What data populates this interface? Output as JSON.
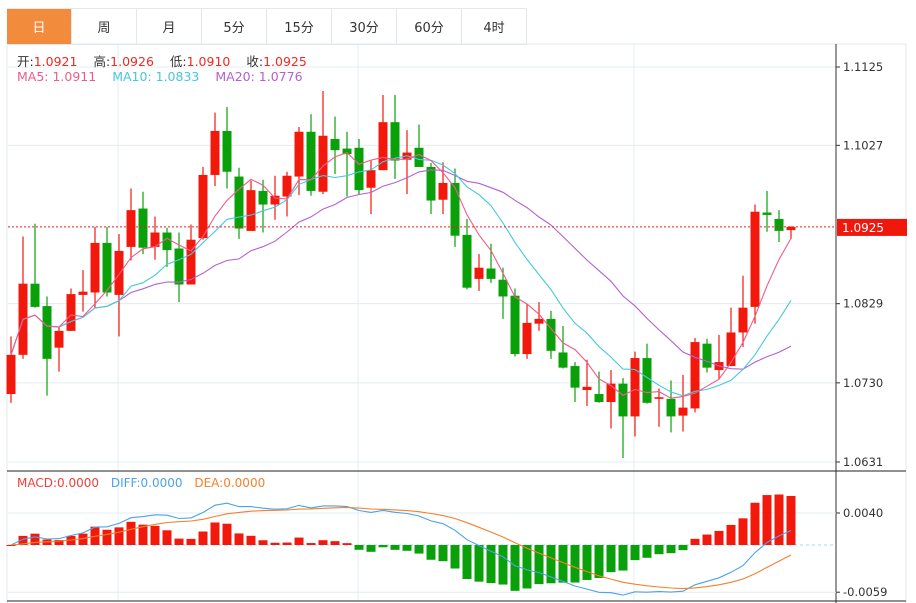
{
  "tabs": [
    {
      "label": "日",
      "active": true
    },
    {
      "label": "周",
      "active": false
    },
    {
      "label": "月",
      "active": false
    },
    {
      "label": "5分",
      "active": false
    },
    {
      "label": "15分",
      "active": false
    },
    {
      "label": "30分",
      "active": false
    },
    {
      "label": "60分",
      "active": false
    },
    {
      "label": "4时",
      "active": false
    }
  ],
  "ohlc_info": {
    "open_label": "开:",
    "open": "1.0921",
    "high_label": "高:",
    "high": "1.0926",
    "low_label": "低:",
    "low": "1.0910",
    "close_label": "收:",
    "close": "1.0925"
  },
  "ma_info": {
    "ma5": "MA5: 1.0911",
    "ma10": "MA10: 1.0833",
    "ma20": "MA20: 1.0776"
  },
  "macd_info": {
    "macd": "MACD:0.0000",
    "diff": "DIFF:0.0000",
    "dea": "DEA:0.0000"
  },
  "colors": {
    "up": "#f2180c",
    "down": "#0aa00a",
    "ma5": "#ef5c8a",
    "ma10": "#46c8dc",
    "ma20": "#b560d2",
    "diff": "#4aa3ea",
    "dea": "#f4812c",
    "accent": "#f28b3c"
  },
  "chart_data": {
    "type": "candlestick",
    "price_axis_ticks": [
      "1.1125",
      "1.1027",
      "1.0829",
      "1.0730",
      "1.0631"
    ],
    "price_axis_range": [
      1.0631,
      1.1125
    ],
    "current_price": "1.0925",
    "macd_axis_ticks": [
      "0.0040",
      "-0.0059"
    ],
    "candles_ohlc": [
      [
        1.0716,
        1.0788,
        1.0705,
        1.0765
      ],
      [
        1.0765,
        1.0913,
        1.076,
        1.0854
      ],
      [
        1.0854,
        1.0929,
        1.0824,
        1.0825
      ],
      [
        1.0826,
        1.0838,
        1.0714,
        1.076
      ],
      [
        1.0774,
        1.08,
        1.0744,
        1.0795
      ],
      [
        1.0795,
        1.0848,
        1.0795,
        1.0841
      ],
      [
        1.084,
        1.0871,
        1.0819,
        1.0844
      ],
      [
        1.0843,
        1.0925,
        1.0823,
        1.0905
      ],
      [
        1.0905,
        1.0925,
        1.0838,
        1.0843
      ],
      [
        1.084,
        1.0916,
        1.0788,
        1.0895
      ],
      [
        1.09,
        1.0973,
        1.0883,
        1.0946
      ],
      [
        1.0948,
        1.0969,
        1.0891,
        1.0899
      ],
      [
        1.09,
        1.0938,
        1.0884,
        1.0918
      ],
      [
        1.0918,
        1.0924,
        1.0875,
        1.0896
      ],
      [
        1.0898,
        1.0918,
        1.0831,
        1.0853
      ],
      [
        1.0853,
        1.0928,
        1.0853,
        1.0909
      ],
      [
        1.0911,
        1.1,
        1.0909,
        1.099
      ],
      [
        1.099,
        1.1068,
        1.0976,
        1.1045
      ],
      [
        1.1045,
        1.1075,
        1.0973,
        1.0994
      ],
      [
        1.0988,
        1.0999,
        1.091,
        1.0923
      ],
      [
        1.092,
        1.0983,
        1.092,
        1.0971
      ],
      [
        1.097,
        1.0984,
        1.0918,
        1.0953
      ],
      [
        1.0953,
        1.0989,
        1.0934,
        1.0964
      ],
      [
        1.0963,
        1.0994,
        1.0938,
        1.0989
      ],
      [
        1.0988,
        1.105,
        1.0965,
        1.1044
      ],
      [
        1.1044,
        1.1066,
        1.0964,
        1.097
      ],
      [
        1.0969,
        1.1095,
        1.0966,
        1.1039
      ],
      [
        1.1035,
        1.1063,
        1.0991,
        1.1021
      ],
      [
        1.1023,
        1.1044,
        1.0963,
        1.1016
      ],
      [
        1.1024,
        1.1035,
        1.0965,
        1.0971
      ],
      [
        1.0974,
        1.1008,
        1.0941,
        1.0996
      ],
      [
        1.0996,
        1.109,
        1.0996,
        1.1056
      ],
      [
        1.1056,
        1.109,
        1.0985,
        1.1008
      ],
      [
        1.1009,
        1.1046,
        1.0966,
        1.1018
      ],
      [
        1.1024,
        1.1053,
        1.1,
        1.1
      ],
      [
        1.1,
        1.1005,
        1.0941,
        1.0958
      ],
      [
        1.0959,
        1.1006,
        1.0941,
        1.098
      ],
      [
        1.098,
        1.0998,
        1.09,
        1.0914
      ],
      [
        1.0915,
        1.0935,
        1.0847,
        1.0849
      ],
      [
        1.086,
        1.0891,
        1.0845,
        1.0874
      ],
      [
        1.0873,
        1.0904,
        1.0855,
        1.086
      ],
      [
        1.0859,
        1.0874,
        1.081,
        1.0838
      ],
      [
        1.0839,
        1.0848,
        1.0763,
        1.0766
      ],
      [
        1.0766,
        1.0829,
        1.076,
        1.0805
      ],
      [
        1.0804,
        1.0831,
        1.0795,
        1.081
      ],
      [
        1.081,
        1.082,
        1.076,
        1.077
      ],
      [
        1.0768,
        1.0801,
        1.0748,
        1.0749
      ],
      [
        1.0751,
        1.0756,
        1.0706,
        1.0724
      ],
      [
        1.0721,
        1.0759,
        1.0701,
        1.0725
      ],
      [
        1.0716,
        1.0744,
        1.0705,
        1.0706
      ],
      [
        1.0706,
        1.0746,
        1.0673,
        1.0729
      ],
      [
        1.0729,
        1.0736,
        1.0636,
        1.0688
      ],
      [
        1.0688,
        1.0769,
        1.0663,
        1.0761
      ],
      [
        1.0761,
        1.0779,
        1.0704,
        1.0705
      ],
      [
        1.071,
        1.0723,
        1.0675,
        1.0712
      ],
      [
        1.071,
        1.0733,
        1.0668,
        1.0688
      ],
      [
        1.0689,
        1.074,
        1.0669,
        1.0699
      ],
      [
        1.0698,
        1.0786,
        1.0693,
        1.0781
      ],
      [
        1.0779,
        1.0785,
        1.0743,
        1.0749
      ],
      [
        1.0746,
        1.079,
        1.0735,
        1.0756
      ],
      [
        1.0751,
        1.0824,
        1.0751,
        1.0793
      ],
      [
        1.0793,
        1.0864,
        1.0775,
        1.0824
      ],
      [
        1.0825,
        1.0953,
        1.0804,
        1.0944
      ],
      [
        1.0943,
        1.097,
        1.0919,
        1.094
      ],
      [
        1.0935,
        1.0946,
        1.0906,
        1.092
      ],
      [
        1.0921,
        1.0926,
        1.091,
        1.0925
      ]
    ],
    "ohlc_order": [
      "open",
      "high",
      "low",
      "close"
    ],
    "indicators": [
      "MA5",
      "MA10",
      "MA20",
      "MACD(12,26,9)"
    ]
  }
}
